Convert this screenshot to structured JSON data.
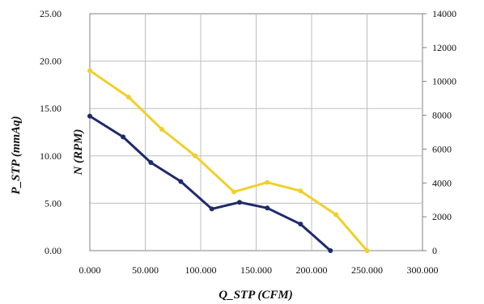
{
  "chart_data": {
    "type": "line",
    "xlabel": "Q_STP (CFM)",
    "ylabel": "P_STP (mmAq)",
    "y2label": "N (RPM)",
    "xlim": [
      0,
      300
    ],
    "ylim": [
      0,
      25
    ],
    "y2lim": [
      0,
      14000
    ],
    "x_ticks": [
      "0.000",
      "50.000",
      "100.000",
      "150.000",
      "200.000",
      "250.000",
      "300.000"
    ],
    "y_ticks": [
      "0.00",
      "5.00",
      "10.00",
      "15.00",
      "20.00",
      "25.00"
    ],
    "y2_ticks": [
      "0",
      "2000",
      "4000",
      "6000",
      "8000",
      "10000",
      "12000",
      "14000"
    ],
    "grid": true,
    "series": [
      {
        "axis": "left",
        "color": "#1f2a6b",
        "x": [
          0,
          30,
          55,
          82,
          110,
          135,
          160,
          190,
          217
        ],
        "y": [
          14.2,
          12.0,
          9.3,
          7.3,
          4.4,
          5.1,
          4.5,
          2.8,
          0
        ]
      },
      {
        "axis": "left",
        "color": "#f0d02a",
        "x": [
          0,
          35,
          65,
          95,
          130,
          160,
          190,
          222,
          250
        ],
        "y": [
          19.0,
          16.2,
          12.8,
          10.0,
          6.2,
          7.2,
          6.3,
          3.8,
          0
        ]
      }
    ]
  }
}
